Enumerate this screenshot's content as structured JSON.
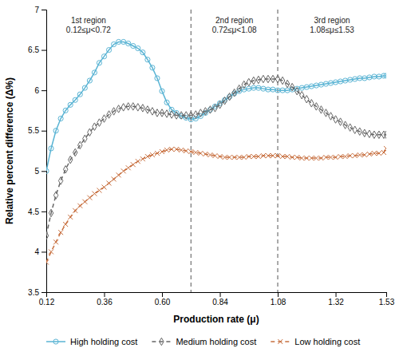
{
  "chart_data": {
    "type": "line",
    "xlabel": "Production rate (μ)",
    "ylabel": "Relative percent difference (Δ%)",
    "xlim": [
      0.12,
      1.53
    ],
    "ylim": [
      3.5,
      7.0
    ],
    "xticks": [
      0.12,
      0.36,
      {
        "value": 0.6,
        "label": "0.60"
      },
      0.84,
      1.08,
      1.32,
      1.53
    ],
    "yticks": [
      3.5,
      4,
      4.5,
      5,
      5.5,
      6,
      6.5,
      7
    ],
    "grid": false,
    "legend": "lower left",
    "vlines": [
      {
        "x": 0.72,
        "color": "#555555"
      },
      {
        "x": 1.08,
        "color": "#555555"
      }
    ],
    "annotations": [
      {
        "text": "1st region\n0.12≤μ<0.72",
        "x": 0.295,
        "y": 6.92
      },
      {
        "text": "2nd region\n0.72≤μ<1.08",
        "x": 0.9,
        "y": 6.92
      },
      {
        "text": "3rd region\n1.08≤μ≤1.53",
        "x": 1.305,
        "y": 6.92
      }
    ],
    "x": [
      0.12,
      0.14,
      0.16,
      0.18,
      0.2,
      0.22,
      0.24,
      0.26,
      0.28,
      0.3,
      0.32,
      0.34,
      0.36,
      0.38,
      0.4,
      0.42,
      0.44,
      0.46,
      0.48,
      0.5,
      0.52,
      0.54,
      0.56,
      0.58,
      0.6,
      0.62,
      0.64,
      0.66,
      0.68,
      0.7,
      0.72,
      0.74,
      0.76,
      0.78,
      0.8,
      0.82,
      0.84,
      0.86,
      0.88,
      0.9,
      0.92,
      0.94,
      0.96,
      0.98,
      1.0,
      1.02,
      1.04,
      1.06,
      1.08,
      1.1,
      1.12,
      1.14,
      1.16,
      1.18,
      1.2,
      1.22,
      1.24,
      1.26,
      1.28,
      1.3,
      1.32,
      1.34,
      1.36,
      1.38,
      1.4,
      1.42,
      1.44,
      1.46,
      1.48,
      1.5,
      1.52,
      1.53
    ],
    "series": [
      {
        "name": "High holding cost",
        "color": "#5ab4d4",
        "marker": "circle",
        "line_style": "solid",
        "values": [
          5.0,
          5.28,
          5.5,
          5.65,
          5.75,
          5.82,
          5.88,
          5.95,
          6.03,
          6.12,
          6.22,
          6.34,
          6.42,
          6.5,
          6.57,
          6.6,
          6.6,
          6.58,
          6.55,
          6.52,
          6.47,
          6.38,
          6.28,
          6.15,
          5.99,
          5.85,
          5.76,
          5.72,
          5.68,
          5.66,
          5.64,
          5.65,
          5.68,
          5.72,
          5.76,
          5.8,
          5.84,
          5.88,
          5.92,
          5.96,
          5.99,
          6.01,
          6.02,
          6.03,
          6.03,
          6.02,
          6.01,
          6.01,
          6.0,
          6.0,
          6.0,
          6.01,
          6.02,
          6.03,
          6.04,
          6.05,
          6.06,
          6.07,
          6.08,
          6.09,
          6.1,
          6.11,
          6.12,
          6.13,
          6.14,
          6.15,
          6.15,
          6.16,
          6.17,
          6.17,
          6.18,
          6.18
        ]
      },
      {
        "name": "Medium holding cost",
        "color": "#666666",
        "marker": "diamond",
        "line_style": "dashed",
        "values": [
          4.2,
          4.48,
          4.7,
          4.88,
          5.02,
          5.14,
          5.23,
          5.32,
          5.4,
          5.48,
          5.55,
          5.6,
          5.65,
          5.7,
          5.74,
          5.77,
          5.79,
          5.8,
          5.8,
          5.79,
          5.78,
          5.76,
          5.74,
          5.72,
          5.72,
          5.71,
          5.7,
          5.69,
          5.69,
          5.69,
          5.69,
          5.7,
          5.72,
          5.74,
          5.76,
          5.78,
          5.82,
          5.87,
          5.92,
          5.97,
          6.02,
          6.07,
          6.1,
          6.12,
          6.13,
          6.14,
          6.14,
          6.14,
          6.14,
          6.12,
          6.08,
          6.04,
          5.99,
          5.94,
          5.89,
          5.84,
          5.8,
          5.76,
          5.72,
          5.68,
          5.64,
          5.61,
          5.57,
          5.54,
          5.51,
          5.49,
          5.47,
          5.46,
          5.45,
          5.45,
          5.45,
          5.45
        ]
      },
      {
        "name": "Low holding cost",
        "color": "#c87040",
        "marker": "x",
        "line_style": "dashed",
        "values": [
          3.87,
          4.0,
          4.12,
          4.24,
          4.34,
          4.43,
          4.51,
          4.57,
          4.62,
          4.67,
          4.72,
          4.76,
          4.8,
          4.85,
          4.9,
          4.95,
          5.0,
          5.04,
          5.08,
          5.12,
          5.15,
          5.18,
          5.2,
          5.22,
          5.24,
          5.26,
          5.27,
          5.27,
          5.26,
          5.25,
          5.24,
          5.23,
          5.22,
          5.21,
          5.2,
          5.19,
          5.18,
          5.17,
          5.17,
          5.17,
          5.17,
          5.17,
          5.18,
          5.18,
          5.18,
          5.19,
          5.19,
          5.19,
          5.19,
          5.18,
          5.18,
          5.17,
          5.17,
          5.16,
          5.16,
          5.16,
          5.16,
          5.16,
          5.17,
          5.17,
          5.17,
          5.18,
          5.18,
          5.19,
          5.19,
          5.2,
          5.2,
          5.21,
          5.22,
          5.22,
          5.23,
          5.28
        ]
      }
    ]
  }
}
